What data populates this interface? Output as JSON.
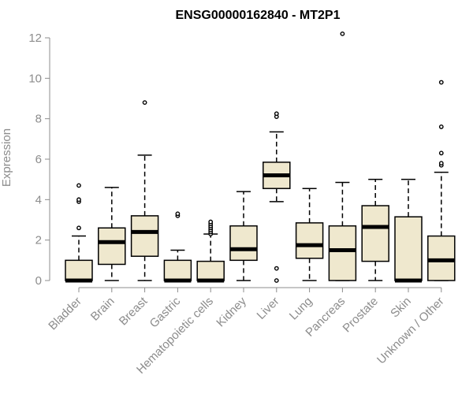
{
  "chart_data": {
    "type": "box",
    "title": "ENSG00000162840 - MT2P1",
    "ylabel": "Expression",
    "xlabel": "",
    "ylim": [
      0,
      12
    ],
    "yticks": [
      0,
      2,
      4,
      6,
      8,
      10,
      12
    ],
    "colors": {
      "box_fill": "#efe8ce",
      "box_stroke": "#000000",
      "axis": "#8c8c8c"
    },
    "categories": [
      "Bladder",
      "Brain",
      "Breast",
      "Gastric",
      "Hematopoietic cells",
      "Kidney",
      "Liver",
      "Lung",
      "Pancreas",
      "Prostate",
      "Skin",
      "Unknown / Other"
    ],
    "boxes": [
      {
        "min": 0,
        "q1": 0,
        "median": 0,
        "q3": 1.0,
        "max": 2.2,
        "outliers": [
          2.6,
          3.9,
          4.0,
          4.7
        ]
      },
      {
        "min": 0,
        "q1": 0.8,
        "median": 1.9,
        "q3": 2.6,
        "max": 4.6,
        "outliers": []
      },
      {
        "min": 0,
        "q1": 1.2,
        "median": 2.4,
        "q3": 3.2,
        "max": 6.2,
        "outliers": [
          8.8
        ]
      },
      {
        "min": 0,
        "q1": 0,
        "median": 0,
        "q3": 1.0,
        "max": 1.5,
        "outliers": [
          3.2,
          3.3
        ]
      },
      {
        "min": 0,
        "q1": 0,
        "median": 0,
        "q3": 0.95,
        "max": 2.3,
        "outliers": [
          2.3,
          2.4,
          2.5,
          2.6,
          2.7,
          2.8,
          2.9
        ]
      },
      {
        "min": 0,
        "q1": 1.0,
        "median": 1.55,
        "q3": 2.7,
        "max": 4.4,
        "outliers": []
      },
      {
        "min": 3.9,
        "q1": 4.55,
        "median": 5.2,
        "q3": 5.85,
        "max": 7.35,
        "outliers": [
          0,
          0.6,
          8.1,
          8.25
        ]
      },
      {
        "min": 0,
        "q1": 1.1,
        "median": 1.75,
        "q3": 2.85,
        "max": 4.55,
        "outliers": []
      },
      {
        "min": 0,
        "q1": 0,
        "median": 1.5,
        "q3": 2.7,
        "max": 4.85,
        "outliers": [
          12.2
        ]
      },
      {
        "min": 0,
        "q1": 0.95,
        "median": 2.65,
        "q3": 3.7,
        "max": 5.0,
        "outliers": []
      },
      {
        "min": 0,
        "q1": 0,
        "median": 0,
        "q3": 3.15,
        "max": 5.0,
        "outliers": []
      },
      {
        "min": 0,
        "q1": 0,
        "median": 1.0,
        "q3": 2.2,
        "max": 5.35,
        "outliers": [
          5.7,
          5.8,
          6.3,
          7.6,
          9.8
        ]
      }
    ]
  }
}
